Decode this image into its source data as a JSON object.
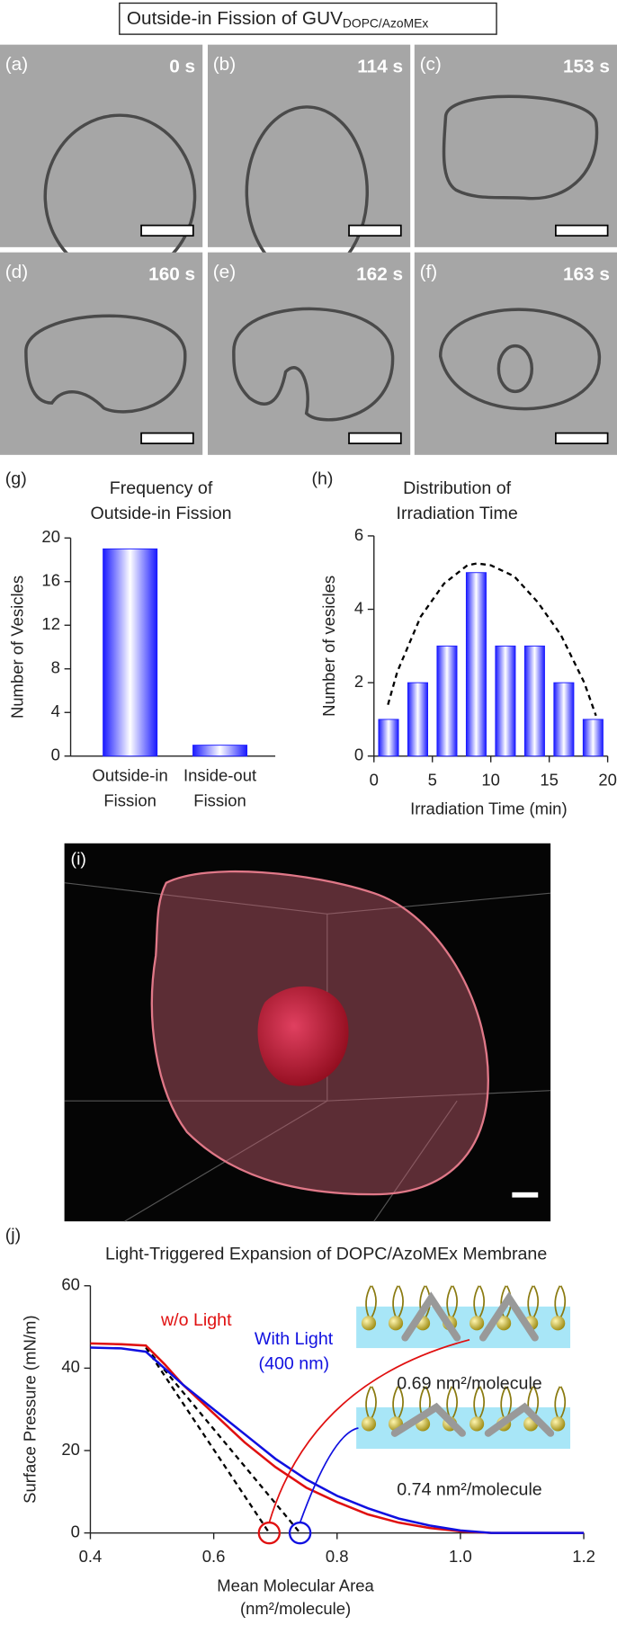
{
  "header": {
    "title": "Outside-in Fission of GUV",
    "title_subscript": "DOPC/AzoMEx"
  },
  "micrographs": [
    {
      "label": "(a)",
      "time": "0 s"
    },
    {
      "label": "(b)",
      "time": "114 s"
    },
    {
      "label": "(c)",
      "time": "153 s"
    },
    {
      "label": "(d)",
      "time": "160 s"
    },
    {
      "label": "(e)",
      "time": "162 s"
    },
    {
      "label": "(f)",
      "time": "163 s"
    }
  ],
  "panel_i": {
    "label": "(i)"
  },
  "chart_data": [
    {
      "type": "bar",
      "panel_label": "(g)",
      "title": [
        "Frequency of",
        "Outside-in Fission"
      ],
      "categories": [
        [
          "Outside-in",
          "Fission"
        ],
        [
          "Inside-out",
          "Fission"
        ]
      ],
      "values": [
        19,
        1
      ],
      "color": "#1a1aff",
      "ylabel": "Number of Vesicles",
      "ylim": [
        0,
        20
      ],
      "yticks": [
        0,
        4,
        8,
        12,
        16,
        20
      ]
    },
    {
      "type": "bar",
      "panel_label": "(h)",
      "title": [
        "Distribution of",
        "Irradiation Time"
      ],
      "x": [
        1.25,
        3.75,
        6.25,
        8.75,
        11.25,
        13.75,
        16.25,
        18.75
      ],
      "values": [
        1,
        2,
        3,
        5,
        3,
        3,
        2,
        1
      ],
      "color": "#1a1aff",
      "fit": {
        "x": [
          1.2,
          2,
          4,
          6,
          8,
          8.8,
          10,
          12,
          14,
          16,
          18,
          19
        ],
        "values": [
          1.4,
          2.3,
          3.8,
          4.7,
          5.2,
          5.25,
          5.2,
          4.9,
          4.2,
          3.3,
          2.0,
          1.1
        ],
        "color": "#000000",
        "style": "dashed"
      },
      "xlabel": "Irradiation Time (min)",
      "ylabel": "Number of vesicles",
      "xlim": [
        0,
        20
      ],
      "xticks": [
        0,
        5,
        10,
        15,
        20
      ],
      "ylim": [
        0,
        6
      ],
      "yticks": [
        0,
        2,
        4,
        6
      ]
    },
    {
      "type": "line",
      "panel_label": "(j)",
      "title": [
        "Light-Triggered Expansion of DOPC/AzoMEx Membrane"
      ],
      "series": [
        {
          "name": [
            "w/o Light"
          ],
          "color": "#e01010",
          "x": [
            0.4,
            0.45,
            0.49,
            0.52,
            0.55,
            0.6,
            0.65,
            0.7,
            0.75,
            0.8,
            0.85,
            0.9,
            0.95,
            1.0,
            1.05,
            1.2
          ],
          "values": [
            46,
            45.8,
            45.5,
            41,
            36,
            29,
            22,
            16,
            11,
            7.5,
            4.5,
            2.5,
            1.2,
            0.4,
            0,
            0
          ]
        },
        {
          "name": [
            "With Light",
            "(400 nm)"
          ],
          "color": "#1010e0",
          "x": [
            0.4,
            0.45,
            0.49,
            0.52,
            0.55,
            0.6,
            0.65,
            0.7,
            0.75,
            0.8,
            0.85,
            0.9,
            0.95,
            1.0,
            1.05,
            1.2
          ],
          "values": [
            45,
            44.8,
            44,
            40,
            36,
            30,
            24,
            18,
            13,
            9,
            6,
            3.5,
            1.8,
            0.6,
            0,
            0
          ]
        }
      ],
      "tangent_start": {
        "x": 0.49,
        "y": 45
      },
      "annotations": [
        {
          "x": 0.69,
          "label": "0.69 nm²/molecule",
          "color": "#e01010"
        },
        {
          "x": 0.74,
          "label": "0.74 nm²/molecule",
          "color": "#1010e0"
        }
      ],
      "xlabel": [
        "Mean Molecular Area",
        "(nm²/molecule)"
      ],
      "ylabel": "Surface Pressure (mN/m)",
      "xlim": [
        0.4,
        1.2
      ],
      "xticks": [
        0.4,
        0.6,
        0.8,
        {
          "value": 1,
          "label": "1.0"
        },
        1.2
      ],
      "ylim": [
        0,
        60
      ],
      "yticks": [
        0,
        20,
        40,
        60
      ]
    }
  ]
}
